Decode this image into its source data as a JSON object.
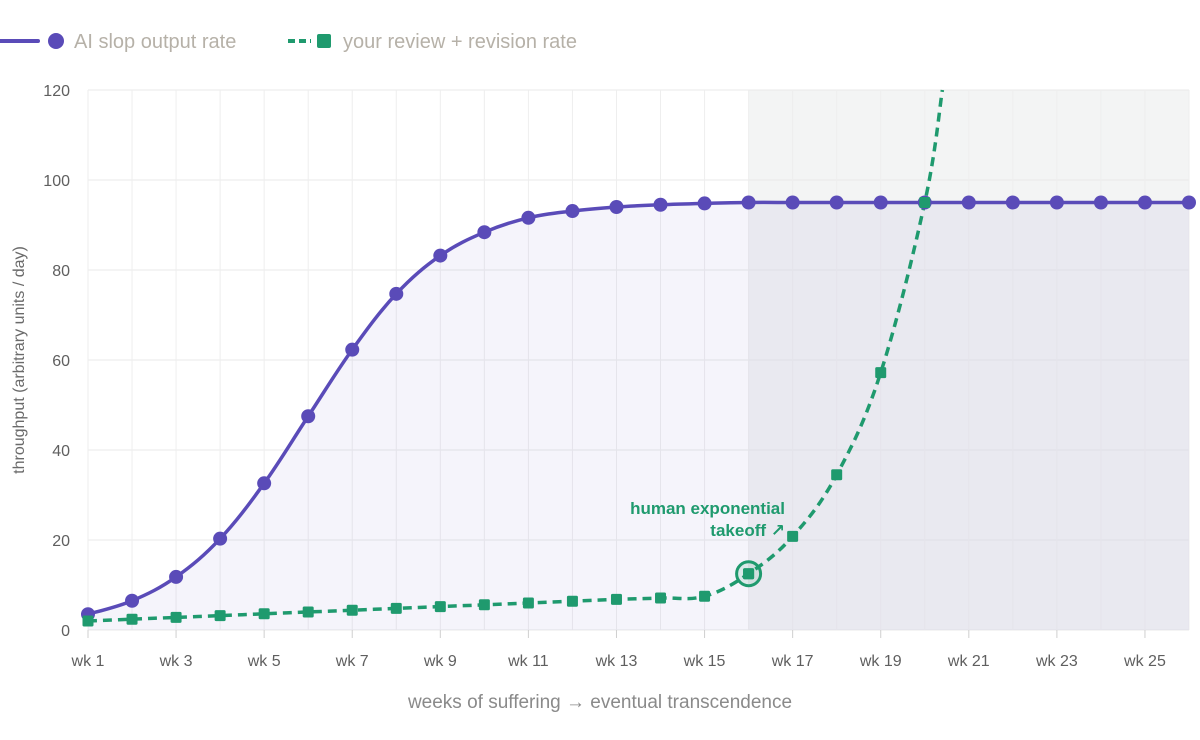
{
  "chart_data": {
    "type": "line",
    "xlabel": "weeks of suffering → eventual transcendence",
    "ylabel": "throughput (arbitrary units / day)",
    "ylim": [
      0,
      120
    ],
    "yticks": [
      0,
      20,
      40,
      60,
      80,
      100,
      120
    ],
    "x": [
      "wk 1",
      "wk 2",
      "wk 3",
      "wk 4",
      "wk 5",
      "wk 6",
      "wk 7",
      "wk 8",
      "wk 9",
      "wk 10",
      "wk 11",
      "wk 12",
      "wk 13",
      "wk 14",
      "wk 15",
      "wk 16",
      "wk 17",
      "wk 18",
      "wk 19",
      "wk 20",
      "wk 21",
      "wk 22",
      "wk 23",
      "wk 24",
      "wk 25",
      "wk 26"
    ],
    "xtick_labels": [
      "wk 1",
      "wk 3",
      "wk 5",
      "wk 7",
      "wk 9",
      "wk 11",
      "wk 13",
      "wk 15",
      "wk 17",
      "wk 19",
      "wk 21",
      "wk 23",
      "wk 25"
    ],
    "legend_position": "top-left",
    "grid": true,
    "series": [
      {
        "name": "AI slop output rate",
        "color": "#5a4bb8",
        "style": "solid",
        "marker": "circle",
        "values": [
          3.5,
          6.5,
          11.8,
          20.3,
          32.6,
          47.5,
          62.3,
          74.7,
          83.2,
          88.4,
          91.6,
          93.1,
          94.0,
          94.5,
          94.8,
          95.0,
          95.0,
          95.0,
          95.0,
          95.0,
          95.0,
          95.0,
          95.0,
          95.0,
          95.0,
          95.0
        ]
      },
      {
        "name": "your review + revision rate",
        "color": "#1f9a6e",
        "style": "dashed",
        "marker": "square",
        "values": [
          2.0,
          2.4,
          2.8,
          3.2,
          3.6,
          4.0,
          4.4,
          4.8,
          5.2,
          5.6,
          6.0,
          6.4,
          6.8,
          7.1,
          7.5,
          12.5,
          20.8,
          34.5,
          57.2,
          95.0,
          null,
          null,
          null,
          null,
          null,
          null
        ],
        "extrapolated_values": {
          "wk 20.4": 120
        }
      }
    ],
    "annotations": [
      {
        "text_line1": "human exponential",
        "text_line2": "takeoff ↗",
        "x": "wk 16",
        "y": 12.5,
        "highlighted_point": true
      }
    ],
    "shaded_region": {
      "from": "wk 16",
      "to": "wk 26"
    }
  }
}
